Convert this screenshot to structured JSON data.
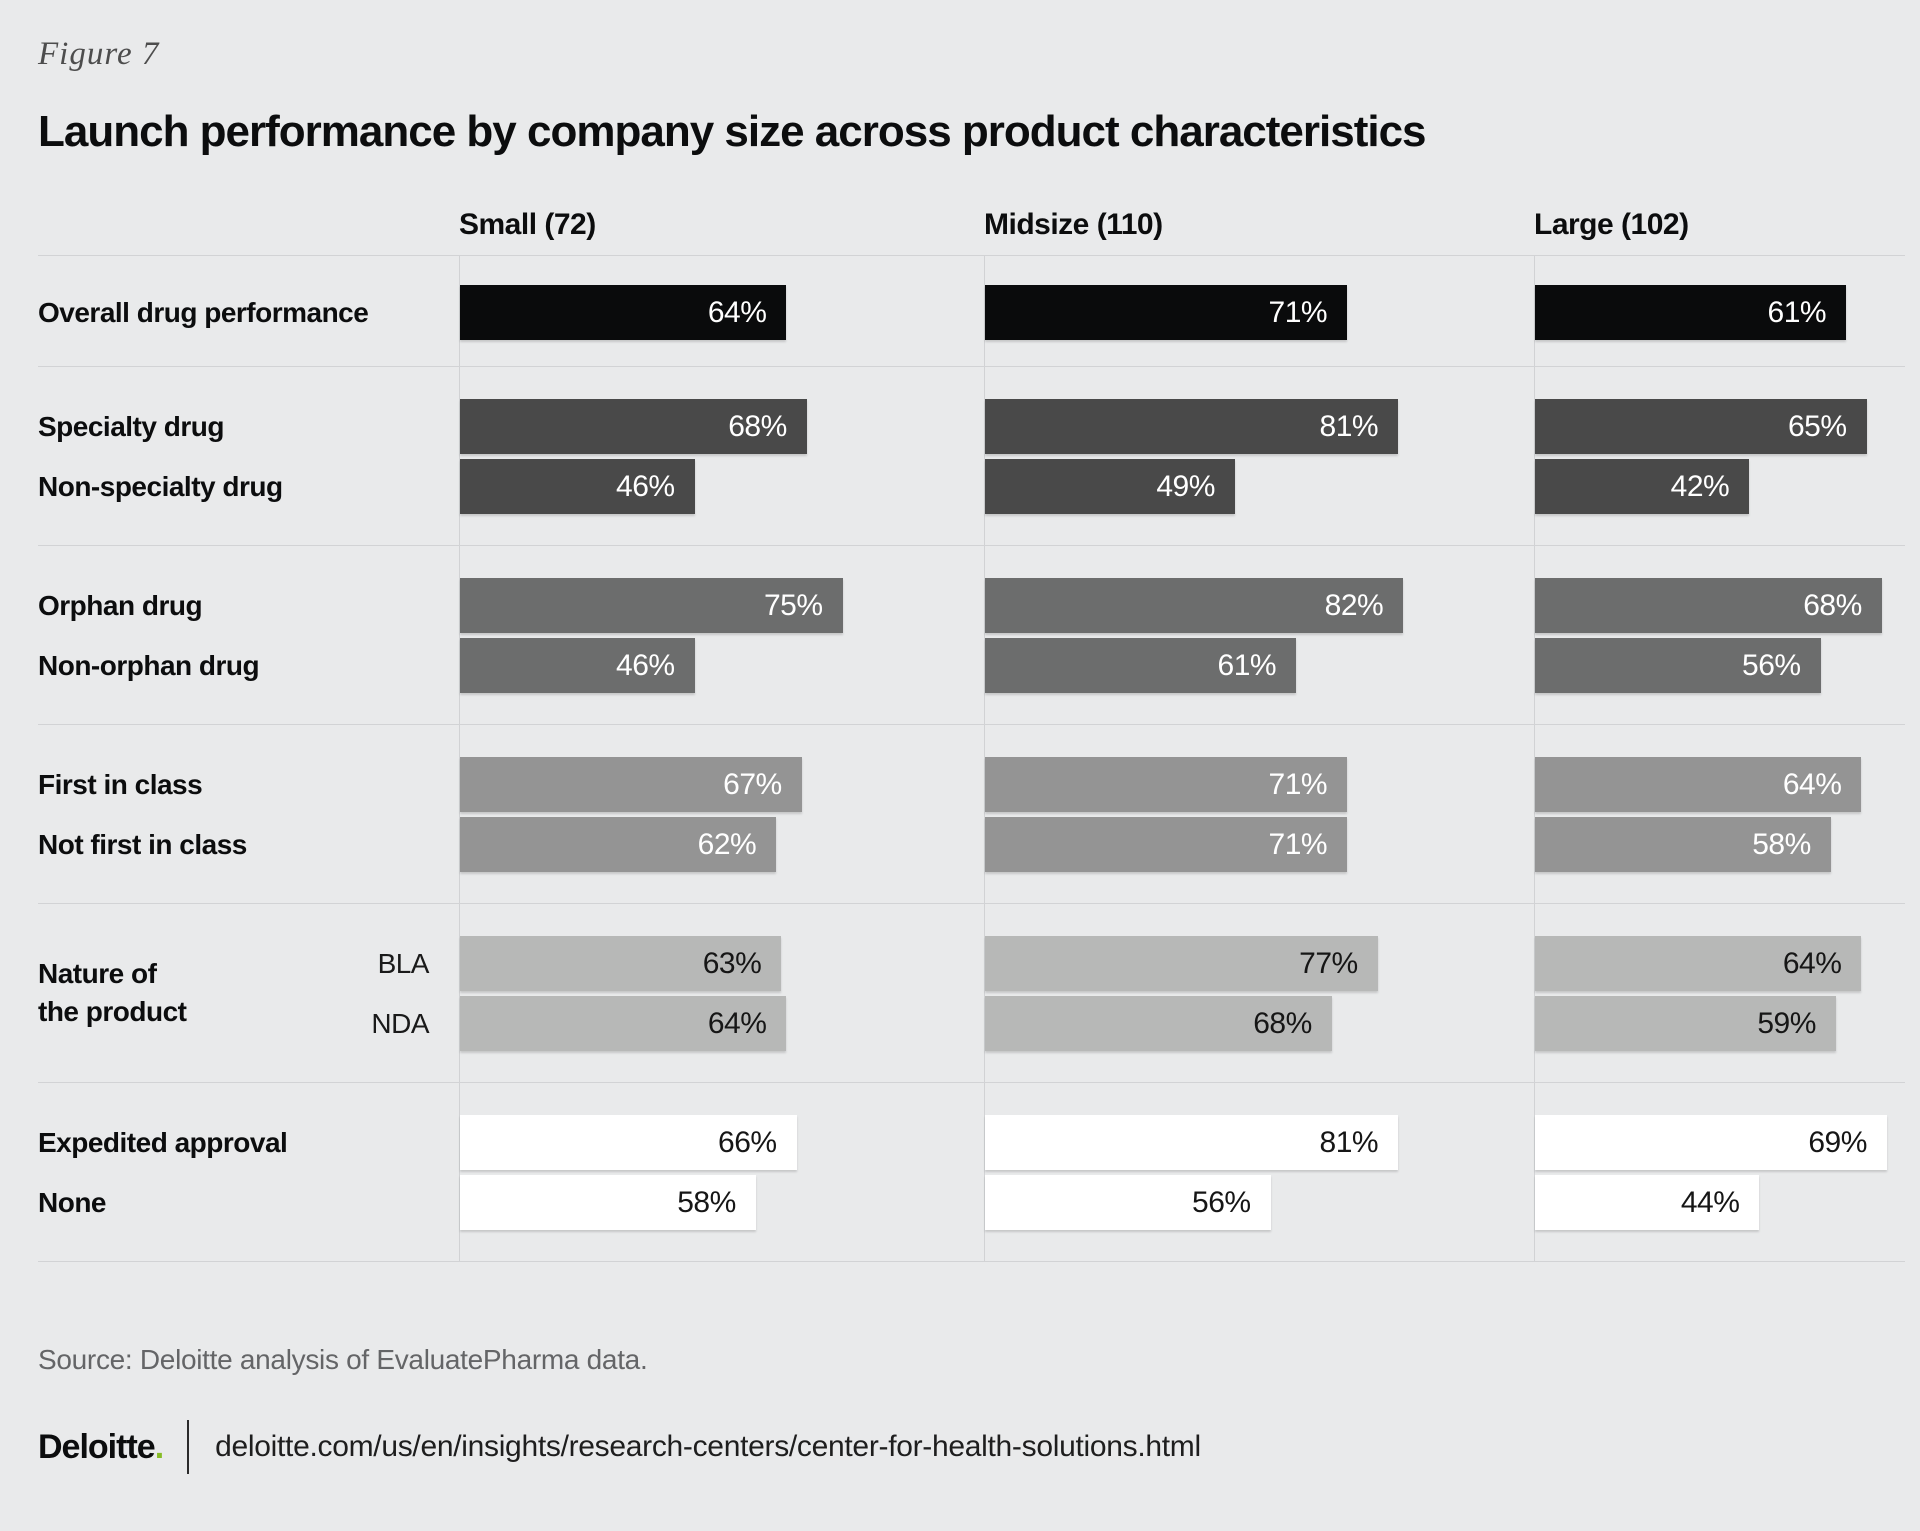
{
  "figure_label": "Figure 7",
  "title": "Launch performance by company size across product characteristics",
  "source_note": "Source: Deloitte analysis of EvaluatePharma data.",
  "footer": {
    "logo_text": "Deloitte",
    "logo_dot": ".",
    "url": "deloitte.com/us/en/insights/research-centers/center-for-health-solutions.html"
  },
  "colors": {
    "background": "#e9eaeb",
    "grid_rule": "#d2d3d5",
    "deloitte_green": "#86bc25",
    "overall_bar": "#0a0b0c",
    "specialty_bar": "#494949",
    "orphan_bar": "#6c6d6d",
    "first_in_class_bar": "#949494",
    "nature_bar": "#b7b8b7",
    "approval_bar": "#ffffff"
  },
  "chart_data": {
    "type": "bar",
    "orientation": "horizontal",
    "unit": "%",
    "value_range": [
      0,
      100
    ],
    "columns": [
      "Small (72)",
      "Midsize (110)",
      "Large (102)"
    ],
    "groups": [
      {
        "bar_color": "#0a0b0c",
        "text_color": "#ffffff",
        "rows": [
          {
            "label": "Overall drug performance",
            "values": [
              64,
              71,
              61
            ]
          }
        ]
      },
      {
        "bar_color": "#494949",
        "text_color": "#ffffff",
        "rows": [
          {
            "label": "Specialty drug",
            "values": [
              68,
              81,
              65
            ]
          },
          {
            "label": "Non-specialty drug",
            "values": [
              46,
              49,
              42
            ]
          }
        ]
      },
      {
        "bar_color": "#6c6d6d",
        "text_color": "#ffffff",
        "rows": [
          {
            "label": "Orphan drug",
            "values": [
              75,
              82,
              68
            ]
          },
          {
            "label": "Non-orphan drug",
            "values": [
              46,
              61,
              56
            ]
          }
        ]
      },
      {
        "bar_color": "#949494",
        "text_color": "#ffffff",
        "rows": [
          {
            "label": "First in class",
            "values": [
              67,
              71,
              64
            ]
          },
          {
            "label": "Not first in class",
            "values": [
              62,
              71,
              58
            ]
          }
        ]
      },
      {
        "bar_color": "#b7b8b7",
        "text_color": "#161616",
        "group_label": [
          "Nature of",
          "the product"
        ],
        "rows": [
          {
            "sublabel": "BLA",
            "values": [
              63,
              77,
              64
            ]
          },
          {
            "sublabel": "NDA",
            "values": [
              64,
              68,
              59
            ]
          }
        ]
      },
      {
        "bar_color": "#ffffff",
        "text_color": "#161616",
        "rows": [
          {
            "label": "Expedited approval",
            "values": [
              66,
              81,
              69
            ]
          },
          {
            "label": "None",
            "values": [
              58,
              56,
              44
            ]
          }
        ]
      }
    ]
  }
}
